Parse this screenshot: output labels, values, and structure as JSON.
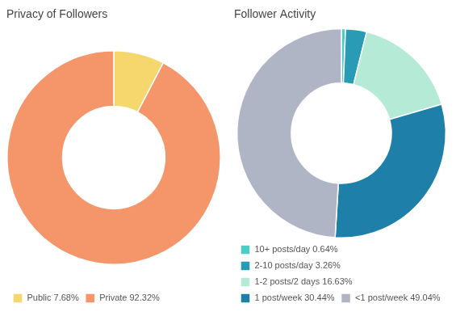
{
  "chart_data": [
    {
      "type": "doughnut",
      "title": "Privacy of Followers",
      "categories": [
        "Public 7.68%",
        "Private 92.32%"
      ],
      "values": [
        7.68,
        92.32
      ],
      "colors": [
        "#F5D76E",
        "#F5956A"
      ],
      "legend": "bottom"
    },
    {
      "type": "doughnut",
      "title": "Follower Activity",
      "categories": [
        "10+ posts/day 0.64%",
        "2-10 posts/day 3.26%",
        "1-2 posts/2 days 16.63%",
        "1 post/week 30.44%",
        "<1 post/week 49.04%"
      ],
      "values": [
        0.64,
        3.26,
        16.63,
        30.44,
        49.04
      ],
      "colors": [
        "#4ECDC4",
        "#2A9BB5",
        "#B5EAD7",
        "#1E7FA8",
        "#B0B5C5"
      ],
      "legend": "bottom"
    }
  ]
}
